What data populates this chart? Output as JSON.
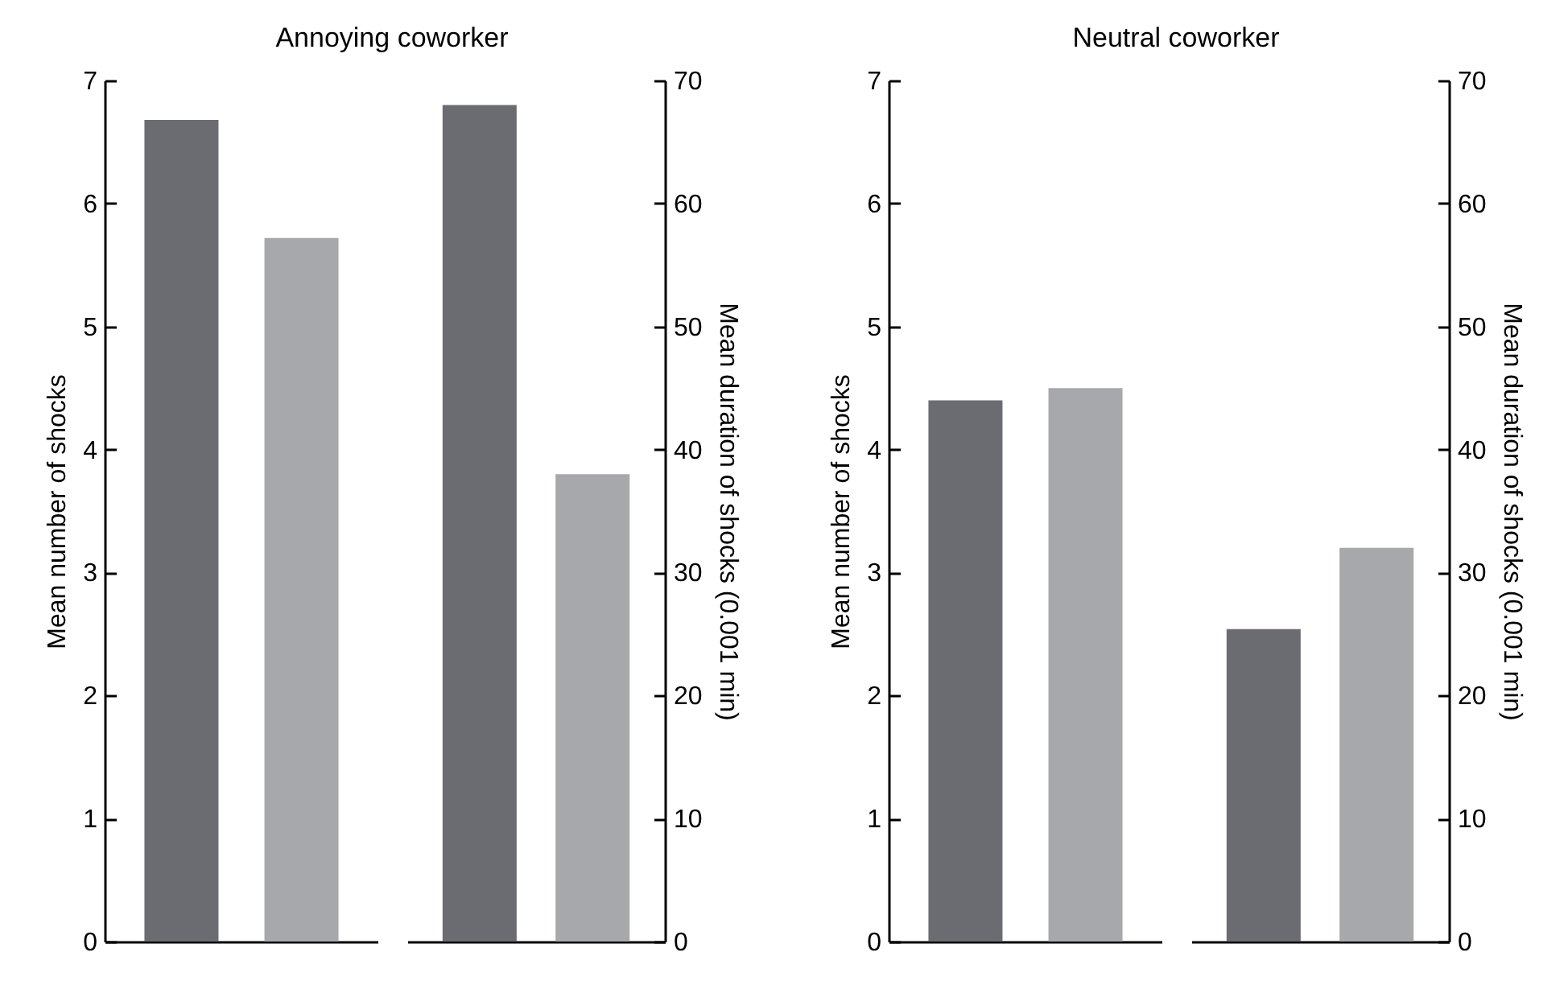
{
  "chart_data": [
    {
      "type": "bar",
      "title": "Annoying coworker",
      "ylabel": "Mean number of shocks",
      "categories": [
        null,
        null
      ],
      "values": [
        6.68,
        5.72
      ],
      "colors": [
        "#6b6c71",
        "#a7a8ac"
      ],
      "ylim": [
        0,
        7
      ],
      "yticks": [
        0,
        1,
        2,
        3,
        4,
        5,
        6,
        7
      ],
      "grid": false,
      "legend": false
    },
    {
      "type": "bar",
      "ylabel": "Mean duration of shocks (0.001 min)",
      "categories": [
        null,
        null
      ],
      "values": [
        68,
        38
      ],
      "colors": [
        "#6b6c71",
        "#a7a8ac"
      ],
      "ylim": [
        0,
        70
      ],
      "yticks": [
        0,
        10,
        20,
        30,
        40,
        50,
        60,
        70
      ],
      "grid": false,
      "legend": false
    },
    {
      "type": "bar",
      "title": "Neutral coworker",
      "ylabel": "Mean number of shocks",
      "categories": [
        null,
        null
      ],
      "values": [
        4.4,
        4.5
      ],
      "colors": [
        "#6b6c71",
        "#a7a8ac"
      ],
      "ylim": [
        0,
        7
      ],
      "yticks": [
        0,
        1,
        2,
        3,
        4,
        5,
        6,
        7
      ],
      "grid": false,
      "legend": false
    },
    {
      "type": "bar",
      "ylabel": "Mean duration of shocks (0.001 min)",
      "categories": [
        null,
        null
      ],
      "values": [
        25.4,
        32
      ],
      "colors": [
        "#6b6c71",
        "#a7a8ac"
      ],
      "ylim": [
        0,
        70
      ],
      "yticks": [
        0,
        10,
        20,
        30,
        40,
        50,
        60,
        70
      ],
      "grid": false,
      "legend": false
    }
  ]
}
